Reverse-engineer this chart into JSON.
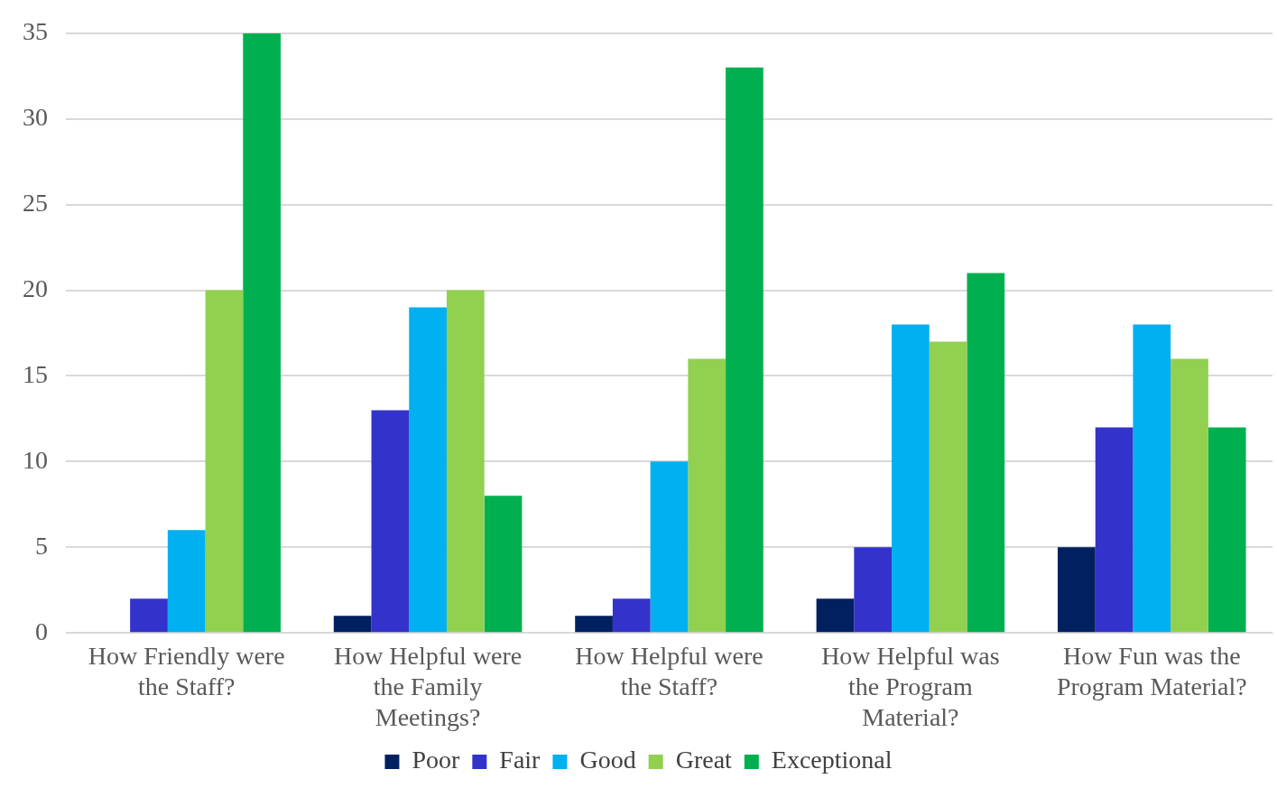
{
  "chart_data": {
    "type": "bar",
    "categories": [
      "How Friendly were the Staff?",
      "How Helpful were the Family Meetings?",
      "How Helpful were the Staff?",
      "How Helpful was the Program Material?",
      "How Fun was the Program Material?"
    ],
    "series": [
      {
        "name": "Poor",
        "color": "#002060",
        "values": [
          0,
          1,
          1,
          2,
          5
        ]
      },
      {
        "name": "Fair",
        "color": "#3333cc",
        "values": [
          2,
          13,
          2,
          5,
          12
        ]
      },
      {
        "name": "Good",
        "color": "#00b0f0",
        "values": [
          6,
          19,
          10,
          18,
          18
        ]
      },
      {
        "name": "Great",
        "color": "#92d050",
        "values": [
          20,
          20,
          16,
          17,
          16
        ]
      },
      {
        "name": "Exceptional",
        "color": "#00b050",
        "values": [
          35,
          8,
          33,
          21,
          12
        ]
      }
    ],
    "ylim": [
      0,
      35
    ],
    "yticks": [
      0,
      5,
      10,
      15,
      20,
      25,
      30,
      35
    ],
    "grid": "y",
    "legend": "bottom"
  }
}
